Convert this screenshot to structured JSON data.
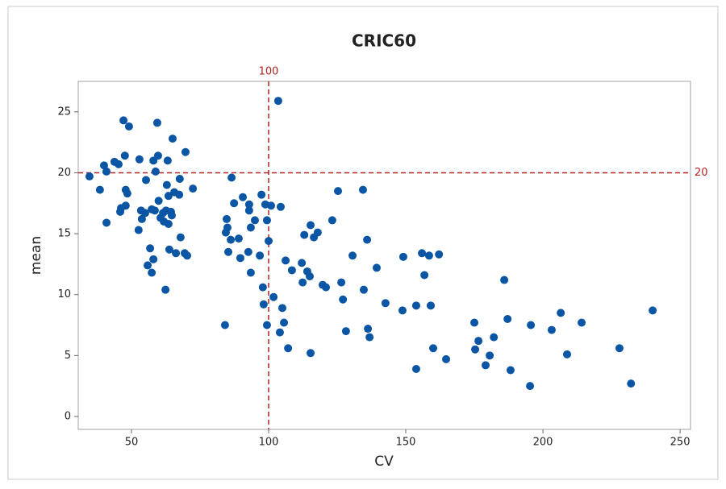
{
  "chart_data": {
    "type": "scatter",
    "title": "CRIC60",
    "x_label": "CV",
    "y_label": "mean",
    "color": "#0a56a5",
    "x": [
      34.7,
      38.5,
      40.0,
      40.9,
      40.9,
      43.8,
      45.3,
      45.9,
      46.2,
      47.1,
      47.6,
      47.9,
      48.5,
      47.9,
      49.1,
      52.9,
      53.5,
      53.8,
      52.6,
      55.0,
      55.3,
      55.9,
      56.8,
      57.4,
      57.4,
      58.0,
      58.5,
      58.8,
      59.7,
      59.4,
      58.0,
      59.9,
      60.6,
      61.5,
      61.8,
      62.6,
      62.9,
      63.2,
      63.5,
      63.5,
      63.8,
      62.4,
      64.4,
      64.7,
      65.0,
      65.6,
      66.2,
      67.4,
      67.9,
      69.7,
      69.4,
      70.3,
      72.4,
      67.6,
      84.1,
      84.4,
      84.7,
      85.0,
      85.3,
      86.5,
      87.4,
      86.2,
      89.1,
      89.7,
      90.6,
      92.9,
      92.6,
      92.9,
      93.5,
      93.5,
      95.0,
      96.8,
      97.4,
      97.9,
      98.2,
      98.8,
      99.4,
      99.4,
      100,
      100.9,
      101.8,
      103.5,
      104.4,
      104.1,
      105,
      105.6,
      106.2,
      107.1,
      108.5,
      112.1,
      112.4,
      113.0,
      114.1,
      115.0,
      115.3,
      115.3,
      116.5,
      117.9,
      119.7,
      120.9,
      123.2,
      125.3,
      126.5,
      127.1,
      128.2,
      130.6,
      134.4,
      134.7,
      135.9,
      136.2,
      136.8,
      139.4,
      142.6,
      148.8,
      149.1,
      153.8,
      153.8,
      155.9,
      156.8,
      158.5,
      159.1,
      160,
      162.1,
      164.7,
      175,
      175.3,
      176.5,
      179.1,
      180.6,
      182.1,
      185.9,
      187.1,
      188.2,
      195.3,
      195.6,
      203.2,
      206.5,
      208.8,
      214.1,
      227.9,
      232.1,
      240
    ],
    "y": [
      19.7,
      18.6,
      20.6,
      20.1,
      15.9,
      20.9,
      20.7,
      16.8,
      17.1,
      24.3,
      21.4,
      18.6,
      18.3,
      17.3,
      23.8,
      21.1,
      16.9,
      16.2,
      15.3,
      16.7,
      19.4,
      12.4,
      13.8,
      17.0,
      11.8,
      12.9,
      16.9,
      20.1,
      21.4,
      24.1,
      21.0,
      17.7,
      16.3,
      16.7,
      16.0,
      16.9,
      19.0,
      21.0,
      18.1,
      15.8,
      13.7,
      10.4,
      16.8,
      16.5,
      22.8,
      18.4,
      13.4,
      18.2,
      14.7,
      21.7,
      13.4,
      13.2,
      18.7,
      19.5,
      7.5,
      15.1,
      16.2,
      15.5,
      13.5,
      19.6,
      17.5,
      14.5,
      14.6,
      13.0,
      18.0,
      17.4,
      13.5,
      16.9,
      15.5,
      11.8,
      16.1,
      13.2,
      18.2,
      10.6,
      9.2,
      17.4,
      7.5,
      16.1,
      14.4,
      17.3,
      9.8,
      25.9,
      17.2,
      6.9,
      8.9,
      7.7,
      12.8,
      5.6,
      12.0,
      12.6,
      11.0,
      14.9,
      11.9,
      11.5,
      15.7,
      5.2,
      14.7,
      15.1,
      10.8,
      10.6,
      16.1,
      18.5,
      11.0,
      9.6,
      7.0,
      13.2,
      18.6,
      10.4,
      14.5,
      7.2,
      6.5,
      12.2,
      9.3,
      8.7,
      13.1,
      3.9,
      9.1,
      13.4,
      11.6,
      13.2,
      9.1,
      5.6,
      13.3,
      4.7,
      7.7,
      5.5,
      6.2,
      4.2,
      5.0,
      6.5,
      11.2,
      8.0,
      3.8,
      2.5,
      7.5,
      7.1,
      8.5,
      5.1,
      7.7,
      5.6,
      2.7,
      8.7
    ],
    "xlim": [
      30.6,
      253.8
    ],
    "ylim": [
      -1.06,
      27.5
    ],
    "xticks": [
      50,
      100,
      150,
      200,
      250
    ],
    "yticks": [
      0,
      5,
      10,
      15,
      20,
      25
    ],
    "reference_lines": {
      "x": 100,
      "y": 20,
      "color": "#b22222"
    }
  }
}
